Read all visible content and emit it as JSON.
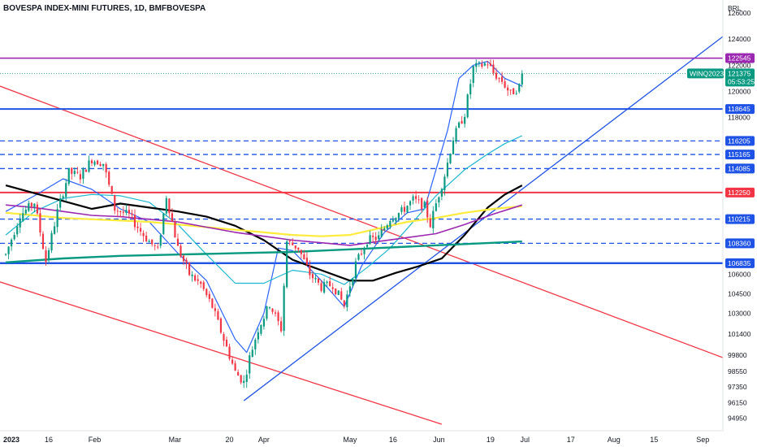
{
  "chart_data": {
    "type": "candlestick",
    "title": "BOVESPA INDEX-MINI FUTURES, 1D, BMFBOVESPA",
    "currency": "BRL",
    "ylim": [
      94000,
      127000
    ],
    "y_ticks": [
      126000,
      124000,
      122000,
      120000,
      118000,
      106000,
      104500,
      103000,
      101400,
      99800,
      98550,
      97350,
      96150,
      94950
    ],
    "x_ticks": [
      {
        "label": "2023",
        "x": 0,
        "bold": true
      },
      {
        "label": "16",
        "x": 15
      },
      {
        "label": "Feb",
        "x": 31
      },
      {
        "label": "Mar",
        "x": 59
      },
      {
        "label": "20",
        "x": 78
      },
      {
        "label": "Apr",
        "x": 90
      },
      {
        "label": "May",
        "x": 120
      },
      {
        "label": "16",
        "x": 135
      },
      {
        "label": "Jun",
        "x": 151
      },
      {
        "label": "19",
        "x": 169
      },
      {
        "label": "Jul",
        "x": 181
      },
      {
        "label": "17",
        "x": 197
      },
      {
        "label": "Aug",
        "x": 212
      },
      {
        "label": "15",
        "x": 226
      },
      {
        "label": "Sep",
        "x": 243
      }
    ],
    "xlim": [
      -2,
      250
    ],
    "levels": [
      {
        "label": "122545",
        "value": 122545,
        "color": "#9c27b0",
        "style": "solid",
        "width": 1.6
      },
      {
        "label": "118645",
        "value": 118645,
        "color": "#1e53e5",
        "style": "solid",
        "width": 2
      },
      {
        "label": "116205",
        "value": 116205,
        "color": "#1e53e5",
        "style": "dashed",
        "width": 1.3
      },
      {
        "label": "115165",
        "value": 115165,
        "color": "#1e53e5",
        "style": "dashed",
        "width": 1.3
      },
      {
        "label": "114085",
        "value": 114085,
        "color": "#1e53e5",
        "style": "dashed",
        "width": 1.3
      },
      {
        "label": "112250",
        "value": 112250,
        "color": "#f23645",
        "style": "solid",
        "width": 2
      },
      {
        "label": "110215",
        "value": 110215,
        "color": "#1e53e5",
        "style": "dashed",
        "width": 1.3
      },
      {
        "label": "108360",
        "value": 108360,
        "color": "#1e53e5",
        "style": "dashed",
        "width": 1.3
      },
      {
        "label": "106835",
        "value": 106835,
        "color": "#1e53e5",
        "style": "solid",
        "width": 2.4
      }
    ],
    "last_price": {
      "symbol": "WINQ2023",
      "value": "121375",
      "countdown": "05:53:25",
      "level": 121375,
      "color": "#089981"
    },
    "trendlines": [
      {
        "name": "upper-resistance",
        "color": "#f23645",
        "points": [
          [
            -2,
            120400
          ],
          [
            250,
            99600
          ]
        ]
      },
      {
        "name": "lower-channel",
        "color": "#f23645",
        "points": [
          [
            -2,
            105400
          ],
          [
            152,
            94500
          ]
        ]
      },
      {
        "name": "ascending-support",
        "color": "#1e53e5",
        "points": [
          [
            83,
            96300
          ],
          [
            250,
            124200
          ]
        ]
      }
    ],
    "moving_averages": [
      {
        "name": "ma-fast",
        "color": "#2962ff",
        "width": 1.2,
        "points": [
          [
            0,
            110800
          ],
          [
            10,
            112000
          ],
          [
            20,
            113300
          ],
          [
            30,
            112500
          ],
          [
            40,
            111000
          ],
          [
            50,
            110000
          ],
          [
            60,
            107600
          ],
          [
            70,
            105500
          ],
          [
            80,
            101000
          ],
          [
            84,
            100000
          ],
          [
            90,
            103000
          ],
          [
            95,
            108000
          ],
          [
            100,
            107800
          ],
          [
            110,
            105500
          ],
          [
            118,
            103500
          ],
          [
            124,
            106600
          ],
          [
            132,
            109200
          ],
          [
            140,
            110700
          ],
          [
            146,
            111000
          ],
          [
            150,
            114000
          ],
          [
            154,
            117000
          ],
          [
            158,
            121000
          ],
          [
            163,
            122000
          ],
          [
            168,
            122300
          ],
          [
            174,
            121000
          ],
          [
            180,
            120400
          ]
        ]
      },
      {
        "name": "ma-20",
        "color": "#1ab7cf",
        "width": 1.2,
        "points": [
          [
            0,
            109000
          ],
          [
            10,
            110800
          ],
          [
            20,
            111800
          ],
          [
            30,
            112100
          ],
          [
            40,
            112000
          ],
          [
            50,
            111500
          ],
          [
            60,
            109800
          ],
          [
            70,
            107500
          ],
          [
            80,
            105300
          ],
          [
            90,
            105300
          ],
          [
            100,
            106300
          ],
          [
            110,
            106000
          ],
          [
            118,
            105200
          ],
          [
            126,
            106500
          ],
          [
            134,
            108000
          ],
          [
            142,
            110000
          ],
          [
            150,
            112000
          ],
          [
            160,
            114000
          ],
          [
            168,
            115200
          ],
          [
            174,
            116000
          ],
          [
            180,
            116600
          ]
        ]
      },
      {
        "name": "ma-50",
        "color": "#000000",
        "width": 2.2,
        "points": [
          [
            0,
            112800
          ],
          [
            10,
            112200
          ],
          [
            20,
            111600
          ],
          [
            30,
            111000
          ],
          [
            40,
            111400
          ],
          [
            50,
            111100
          ],
          [
            60,
            110800
          ],
          [
            70,
            110400
          ],
          [
            80,
            109700
          ],
          [
            90,
            108600
          ],
          [
            100,
            107100
          ],
          [
            110,
            106300
          ],
          [
            120,
            105500
          ],
          [
            128,
            105500
          ],
          [
            136,
            106100
          ],
          [
            144,
            106600
          ],
          [
            152,
            107200
          ],
          [
            160,
            109000
          ],
          [
            168,
            111100
          ],
          [
            174,
            112100
          ],
          [
            180,
            112800
          ]
        ]
      },
      {
        "name": "ma-100",
        "color": "#ffeb3b",
        "width": 2.2,
        "points": [
          [
            0,
            110700
          ],
          [
            10,
            110500
          ],
          [
            20,
            110300
          ],
          [
            30,
            110200
          ],
          [
            40,
            110100
          ],
          [
            50,
            110000
          ],
          [
            60,
            109800
          ],
          [
            70,
            109600
          ],
          [
            80,
            109400
          ],
          [
            90,
            109200
          ],
          [
            100,
            109000
          ],
          [
            110,
            108900
          ],
          [
            120,
            109000
          ],
          [
            130,
            109500
          ],
          [
            140,
            110000
          ],
          [
            150,
            110300
          ],
          [
            160,
            110700
          ],
          [
            170,
            111000
          ],
          [
            180,
            111200
          ]
        ]
      },
      {
        "name": "ma-150",
        "color": "#9c27b0",
        "width": 1.6,
        "points": [
          [
            0,
            111300
          ],
          [
            10,
            111100
          ],
          [
            20,
            110800
          ],
          [
            30,
            110500
          ],
          [
            40,
            110400
          ],
          [
            50,
            110200
          ],
          [
            60,
            110000
          ],
          [
            70,
            109600
          ],
          [
            80,
            109200
          ],
          [
            90,
            108900
          ],
          [
            100,
            108600
          ],
          [
            110,
            108400
          ],
          [
            120,
            108200
          ],
          [
            130,
            108500
          ],
          [
            140,
            108800
          ],
          [
            150,
            109100
          ],
          [
            160,
            109800
          ],
          [
            170,
            110600
          ],
          [
            180,
            111300
          ]
        ]
      },
      {
        "name": "ma-200",
        "color": "#089981",
        "width": 2.4,
        "points": [
          [
            0,
            106900
          ],
          [
            20,
            107200
          ],
          [
            40,
            107400
          ],
          [
            60,
            107500
          ],
          [
            80,
            107600
          ],
          [
            100,
            107700
          ],
          [
            120,
            107900
          ],
          [
            140,
            108100
          ],
          [
            160,
            108300
          ],
          [
            180,
            108500
          ]
        ]
      }
    ],
    "candle_path": [
      [
        0,
        107500
      ],
      [
        5,
        110500
      ],
      [
        10,
        111500
      ],
      [
        14,
        107000
      ],
      [
        18,
        110800
      ],
      [
        22,
        113800
      ],
      [
        26,
        113500
      ],
      [
        30,
        114800
      ],
      [
        34,
        114500
      ],
      [
        38,
        111000
      ],
      [
        43,
        110500
      ],
      [
        48,
        109000
      ],
      [
        53,
        107800
      ],
      [
        56,
        112000
      ],
      [
        60,
        108000
      ],
      [
        64,
        106000
      ],
      [
        68,
        105200
      ],
      [
        72,
        103500
      ],
      [
        76,
        101000
      ],
      [
        80,
        98500
      ],
      [
        83,
        97700
      ],
      [
        85,
        99600
      ],
      [
        88,
        101800
      ],
      [
        92,
        103700
      ],
      [
        96,
        101800
      ],
      [
        98,
        108500
      ],
      [
        102,
        108000
      ],
      [
        106,
        106000
      ],
      [
        110,
        105000
      ],
      [
        114,
        105200
      ],
      [
        118,
        103600
      ],
      [
        122,
        106800
      ],
      [
        126,
        108600
      ],
      [
        130,
        108800
      ],
      [
        134,
        110300
      ],
      [
        138,
        110800
      ],
      [
        142,
        111700
      ],
      [
        146,
        111200
      ],
      [
        148,
        109800
      ],
      [
        150,
        111400
      ],
      [
        153,
        113600
      ],
      [
        156,
        116400
      ],
      [
        160,
        118300
      ],
      [
        163,
        121800
      ],
      [
        166,
        122000
      ],
      [
        168,
        122200
      ],
      [
        170,
        121400
      ],
      [
        173,
        120800
      ],
      [
        176,
        119800
      ],
      [
        179,
        120400
      ],
      [
        180,
        121375
      ]
    ]
  }
}
